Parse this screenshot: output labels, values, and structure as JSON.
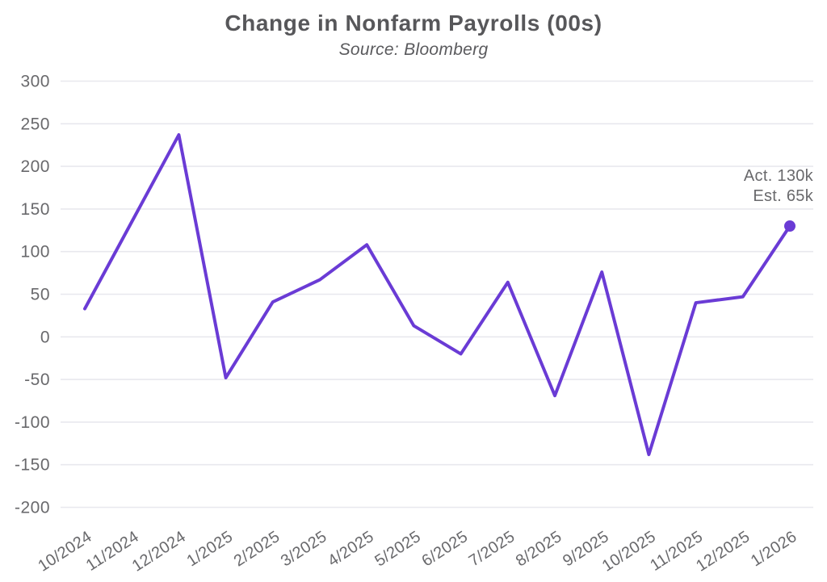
{
  "header": {
    "title": "Change in Nonfarm Payrolls (00s)",
    "subtitle": "Source: Bloomberg"
  },
  "annotation": {
    "line1": "Act. 130k",
    "line2": "Est. 65k"
  },
  "chart_data": {
    "type": "line",
    "title": "Change in Nonfarm Payrolls (00s)",
    "subtitle": "Source: Bloomberg",
    "categories": [
      "10/2024",
      "11/2024",
      "12/2024",
      "1/2025",
      "2/2025",
      "3/2025",
      "4/2025",
      "5/2025",
      "6/2025",
      "7/2025",
      "8/2025",
      "9/2025",
      "10/2025",
      "11/2025",
      "12/2025",
      "1/2026"
    ],
    "values": [
      33,
      135,
      237,
      -48,
      41,
      67,
      108,
      13,
      -20,
      64,
      -69,
      76,
      -138,
      40,
      47,
      130
    ],
    "xlabel": "",
    "ylabel": "",
    "ylim": [
      -200,
      300
    ],
    "ytick_step": 50,
    "grid": true,
    "legend": false,
    "annotations": [
      "Act. 130k",
      "Est. 65k"
    ],
    "last_point_marker": true,
    "colors": {
      "line": "#6A3BD5",
      "marker": "#6A3BD5",
      "grid": "#e8e8ee",
      "tick_labels": "#69696c",
      "title": "#57575a"
    }
  }
}
